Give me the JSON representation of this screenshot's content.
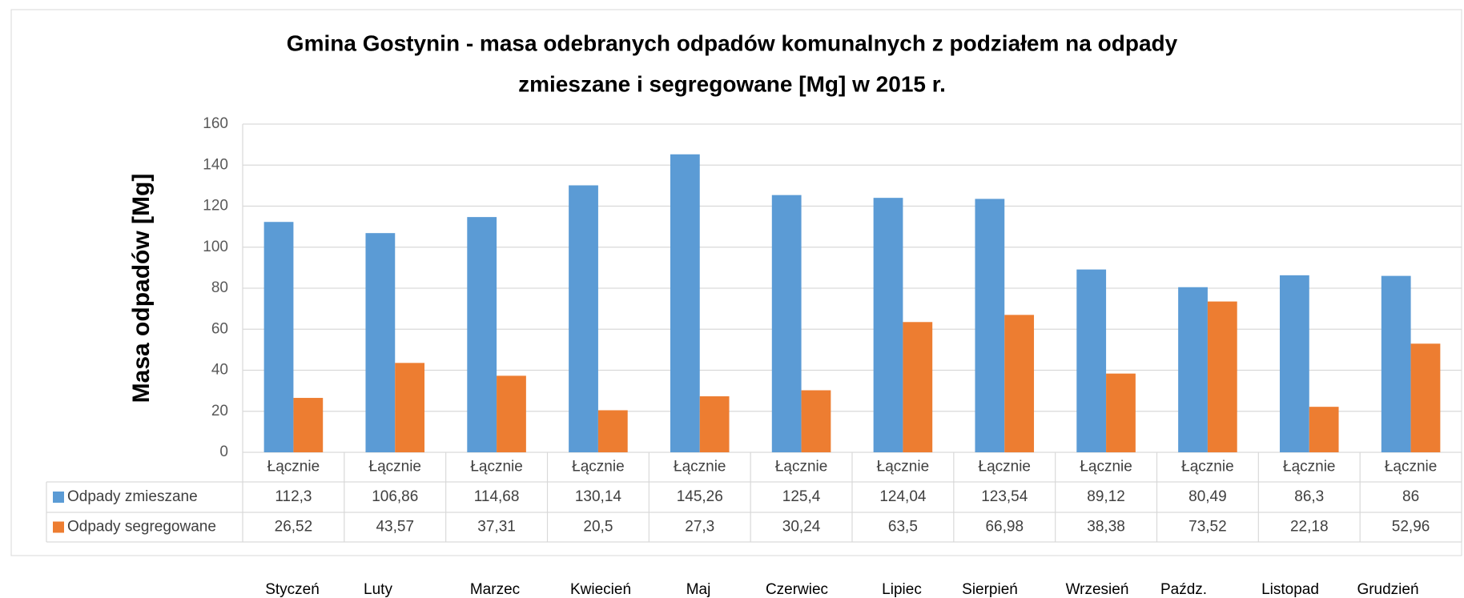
{
  "chart_data": {
    "type": "bar",
    "title": [
      "Gmina Gostynin - masa odebranych odpadów komunalnych z podziałem na odpady",
      "zmieszane i segregowane [Mg] w 2015 r."
    ],
    "y_label": "Masa odpadów [Mg]",
    "categories": [
      "Łącznie",
      "Łącznie",
      "Łącznie",
      "Łącznie",
      "Łącznie",
      "Łącznie",
      "Łącznie",
      "Łącznie",
      "Łącznie",
      "Łącznie",
      "Łącznie",
      "Łącznie"
    ],
    "months": [
      "Styczeń",
      "Luty",
      "Marzec",
      "Kwiecień",
      "Maj",
      "Czerwiec",
      "Lipiec",
      "Sierpień",
      "Wrzesień",
      "Paźdz.",
      "Listopad",
      "Grudzień"
    ],
    "series": [
      {
        "name": "Odpady zmieszane",
        "color": "#5b9bd5",
        "values": [
          112.3,
          106.86,
          114.68,
          130.14,
          145.26,
          125.4,
          124.04,
          123.54,
          89.12,
          80.49,
          86.3,
          86
        ],
        "value_labels": [
          "112,3",
          "106,86",
          "114,68",
          "130,14",
          "145,26",
          "125,4",
          "124,04",
          "123,54",
          "89,12",
          "80,49",
          "86,3",
          "86"
        ]
      },
      {
        "name": "Odpady segregowane",
        "color": "#ed7d31",
        "values": [
          26.52,
          43.57,
          37.31,
          20.5,
          27.3,
          30.24,
          63.5,
          66.98,
          38.38,
          73.52,
          22.18,
          52.96
        ],
        "value_labels": [
          "26,52",
          "43,57",
          "37,31",
          "20,5",
          "27,3",
          "30,24",
          "63,5",
          "66,98",
          "38,38",
          "73,52",
          "22,18",
          "52,96"
        ]
      }
    ],
    "ylim": [
      0,
      160
    ],
    "yticks": [
      0,
      20,
      40,
      60,
      80,
      100,
      120,
      140,
      160
    ],
    "grid": true
  }
}
